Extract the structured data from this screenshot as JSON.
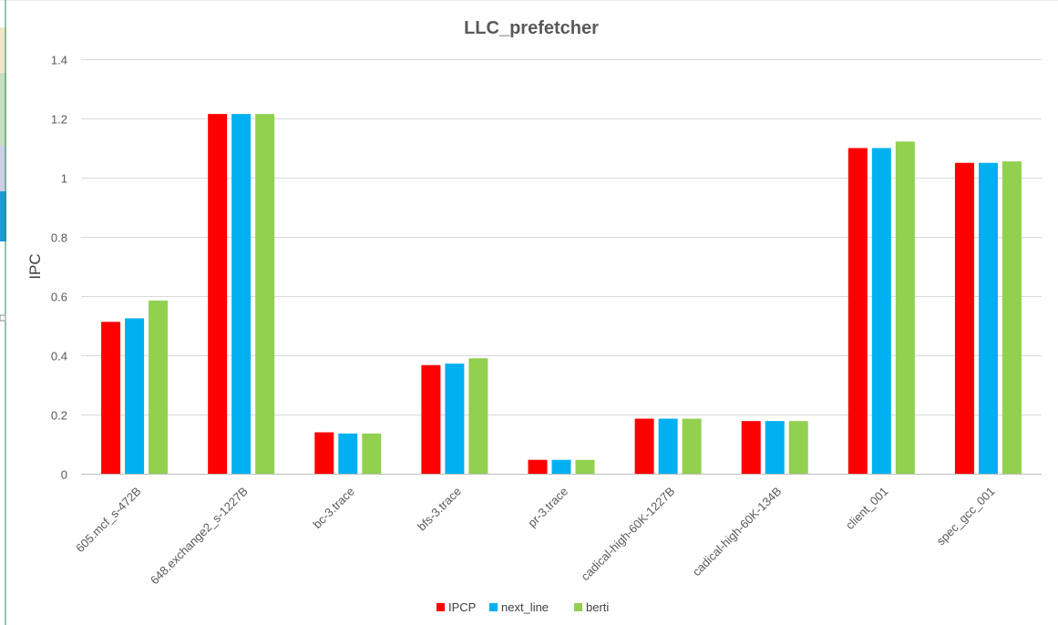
{
  "chart_data": {
    "type": "bar",
    "title": "LLC_prefetcher",
    "xlabel": "",
    "ylabel": "IPC",
    "ylim": [
      0,
      1.4
    ],
    "yticks": [
      "0",
      "0.2",
      "0.4",
      "0.6",
      "0.8",
      "1",
      "1.2",
      "1.4"
    ],
    "grid": true,
    "legend_position": "bottom",
    "categories": [
      "605.mcf_s-472B",
      "648.exchange2_s-1227B",
      "bc-3.trace",
      "bfs-3.trace",
      "pr-3.trace",
      "cadical-high-60K-1227B",
      "cadical-high-60K-134B",
      "client_001",
      "spec_gcc_001"
    ],
    "series": [
      {
        "name": "IPCP",
        "color": "#ff0000",
        "values": [
          0.513,
          1.215,
          0.14,
          0.367,
          0.047,
          0.186,
          0.178,
          1.1,
          1.05
        ]
      },
      {
        "name": "next_line",
        "color": "#00b0f0",
        "values": [
          0.525,
          1.215,
          0.136,
          0.372,
          0.047,
          0.186,
          0.178,
          1.1,
          1.05
        ]
      },
      {
        "name": "berti",
        "color": "#92d050",
        "values": [
          0.585,
          1.215,
          0.136,
          0.39,
          0.047,
          0.186,
          0.178,
          1.122,
          1.055
        ]
      }
    ]
  }
}
